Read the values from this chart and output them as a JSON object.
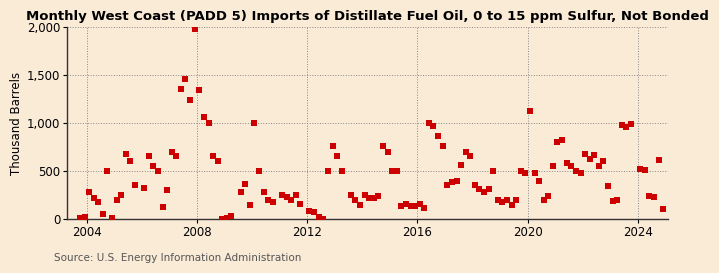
{
  "title": "Monthly West Coast (PADD 5) Imports of Distillate Fuel Oil, 0 to 15 ppm Sulfur, Not Bonded",
  "ylabel": "Thousand Barrels",
  "source": "Source: U.S. Energy Information Administration",
  "background_color": "#faebd7",
  "plot_bg_color": "#faebd7",
  "marker_color": "#cc0000",
  "marker_size": 16,
  "xlim_start": 2003.3,
  "xlim_end": 2025.1,
  "ylim": [
    0,
    2000
  ],
  "yticks": [
    0,
    500,
    1000,
    1500,
    2000
  ],
  "xticks": [
    2004,
    2008,
    2012,
    2016,
    2020,
    2024
  ],
  "title_fontsize": 9.5,
  "axis_fontsize": 8.5,
  "source_fontsize": 7.5,
  "data_points": [
    [
      2003.75,
      10
    ],
    [
      2003.92,
      25
    ],
    [
      2004.08,
      280
    ],
    [
      2004.25,
      220
    ],
    [
      2004.42,
      180
    ],
    [
      2004.58,
      50
    ],
    [
      2004.75,
      500
    ],
    [
      2004.92,
      15
    ],
    [
      2005.08,
      200
    ],
    [
      2005.25,
      250
    ],
    [
      2005.42,
      680
    ],
    [
      2005.58,
      600
    ],
    [
      2005.75,
      350
    ],
    [
      2006.08,
      320
    ],
    [
      2006.25,
      650
    ],
    [
      2006.42,
      550
    ],
    [
      2006.58,
      500
    ],
    [
      2006.75,
      120
    ],
    [
      2006.92,
      300
    ],
    [
      2007.08,
      700
    ],
    [
      2007.25,
      650
    ],
    [
      2007.42,
      1350
    ],
    [
      2007.58,
      1450
    ],
    [
      2007.75,
      1240
    ],
    [
      2007.92,
      1970
    ],
    [
      2008.08,
      1340
    ],
    [
      2008.25,
      1060
    ],
    [
      2008.42,
      1000
    ],
    [
      2008.58,
      650
    ],
    [
      2008.75,
      600
    ],
    [
      2008.92,
      0
    ],
    [
      2009.08,
      10
    ],
    [
      2009.25,
      30
    ],
    [
      2009.58,
      280
    ],
    [
      2009.75,
      360
    ],
    [
      2009.92,
      150
    ],
    [
      2010.08,
      1000
    ],
    [
      2010.25,
      500
    ],
    [
      2010.42,
      280
    ],
    [
      2010.58,
      200
    ],
    [
      2010.75,
      180
    ],
    [
      2011.08,
      250
    ],
    [
      2011.25,
      230
    ],
    [
      2011.42,
      200
    ],
    [
      2011.58,
      250
    ],
    [
      2011.75,
      160
    ],
    [
      2012.08,
      80
    ],
    [
      2012.25,
      70
    ],
    [
      2012.42,
      20
    ],
    [
      2012.58,
      0
    ],
    [
      2012.75,
      500
    ],
    [
      2012.92,
      760
    ],
    [
      2013.08,
      650
    ],
    [
      2013.25,
      500
    ],
    [
      2013.58,
      250
    ],
    [
      2013.75,
      200
    ],
    [
      2013.92,
      150
    ],
    [
      2014.08,
      250
    ],
    [
      2014.25,
      220
    ],
    [
      2014.42,
      220
    ],
    [
      2014.58,
      240
    ],
    [
      2014.75,
      760
    ],
    [
      2014.92,
      700
    ],
    [
      2015.08,
      500
    ],
    [
      2015.25,
      500
    ],
    [
      2015.42,
      130
    ],
    [
      2015.58,
      160
    ],
    [
      2015.75,
      130
    ],
    [
      2015.92,
      140
    ],
    [
      2016.08,
      160
    ],
    [
      2016.25,
      110
    ],
    [
      2016.42,
      1000
    ],
    [
      2016.58,
      970
    ],
    [
      2016.75,
      860
    ],
    [
      2016.92,
      760
    ],
    [
      2017.08,
      350
    ],
    [
      2017.25,
      380
    ],
    [
      2017.42,
      400
    ],
    [
      2017.58,
      560
    ],
    [
      2017.75,
      700
    ],
    [
      2017.92,
      650
    ],
    [
      2018.08,
      350
    ],
    [
      2018.25,
      310
    ],
    [
      2018.42,
      280
    ],
    [
      2018.58,
      310
    ],
    [
      2018.75,
      500
    ],
    [
      2018.92,
      200
    ],
    [
      2019.08,
      180
    ],
    [
      2019.25,
      200
    ],
    [
      2019.42,
      150
    ],
    [
      2019.58,
      200
    ],
    [
      2019.75,
      500
    ],
    [
      2019.92,
      480
    ],
    [
      2020.08,
      1120
    ],
    [
      2020.25,
      480
    ],
    [
      2020.42,
      400
    ],
    [
      2020.58,
      200
    ],
    [
      2020.75,
      240
    ],
    [
      2020.92,
      550
    ],
    [
      2021.08,
      800
    ],
    [
      2021.25,
      820
    ],
    [
      2021.42,
      580
    ],
    [
      2021.58,
      550
    ],
    [
      2021.75,
      500
    ],
    [
      2021.92,
      480
    ],
    [
      2022.08,
      680
    ],
    [
      2022.25,
      620
    ],
    [
      2022.42,
      660
    ],
    [
      2022.58,
      550
    ],
    [
      2022.75,
      600
    ],
    [
      2022.92,
      340
    ],
    [
      2023.08,
      190
    ],
    [
      2023.25,
      200
    ],
    [
      2023.42,
      980
    ],
    [
      2023.58,
      960
    ],
    [
      2023.75,
      990
    ],
    [
      2024.08,
      520
    ],
    [
      2024.25,
      510
    ],
    [
      2024.42,
      240
    ],
    [
      2024.58,
      230
    ],
    [
      2024.75,
      610
    ],
    [
      2024.92,
      100
    ]
  ]
}
